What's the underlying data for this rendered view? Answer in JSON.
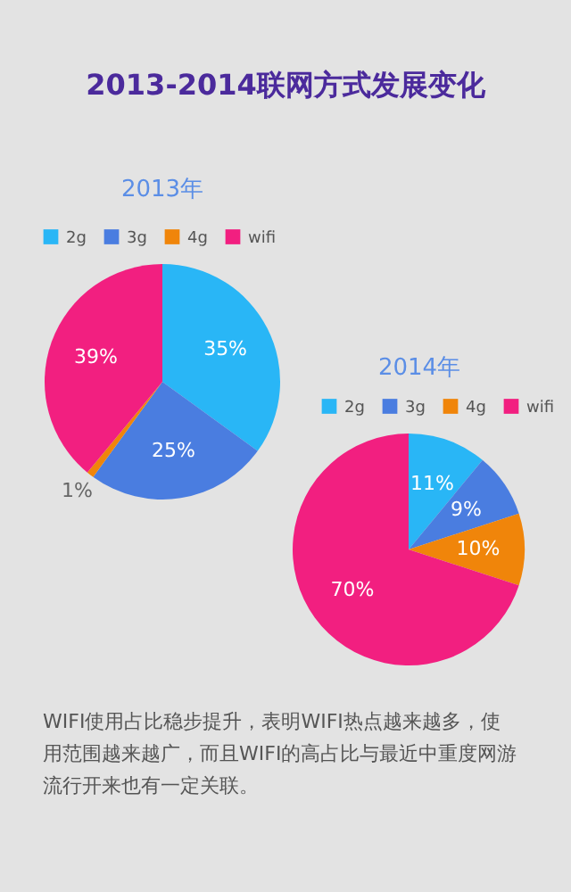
{
  "chart_data": [
    {
      "type": "pie",
      "title": "2013-2014联网方式发展变化",
      "subtitle": "2013年",
      "categories": [
        "2g",
        "3g",
        "4g",
        "wifi"
      ],
      "values": [
        35,
        25,
        1,
        39
      ],
      "colors": [
        "#29b6f6",
        "#4a7de0",
        "#f0850a",
        "#f21f80"
      ],
      "value_labels": [
        "35%",
        "25%",
        "1%",
        "39%"
      ],
      "legend": "top"
    },
    {
      "type": "pie",
      "title": "2014年",
      "categories": [
        "2g",
        "3g",
        "4g",
        "wifi"
      ],
      "values": [
        11,
        9,
        10,
        70
      ],
      "colors": [
        "#29b6f6",
        "#4a7de0",
        "#f0850a",
        "#f21f80"
      ],
      "value_labels": [
        "11%",
        "9%",
        "10%",
        "70%"
      ],
      "legend": "top",
      "annotations": [
        "WIFI使用占比稳步提升，表明WIFI热点越来越多，使用范围越来越广，而且WIFI的高占比与最近中重度网游流行开来也有一定关联。"
      ]
    }
  ]
}
